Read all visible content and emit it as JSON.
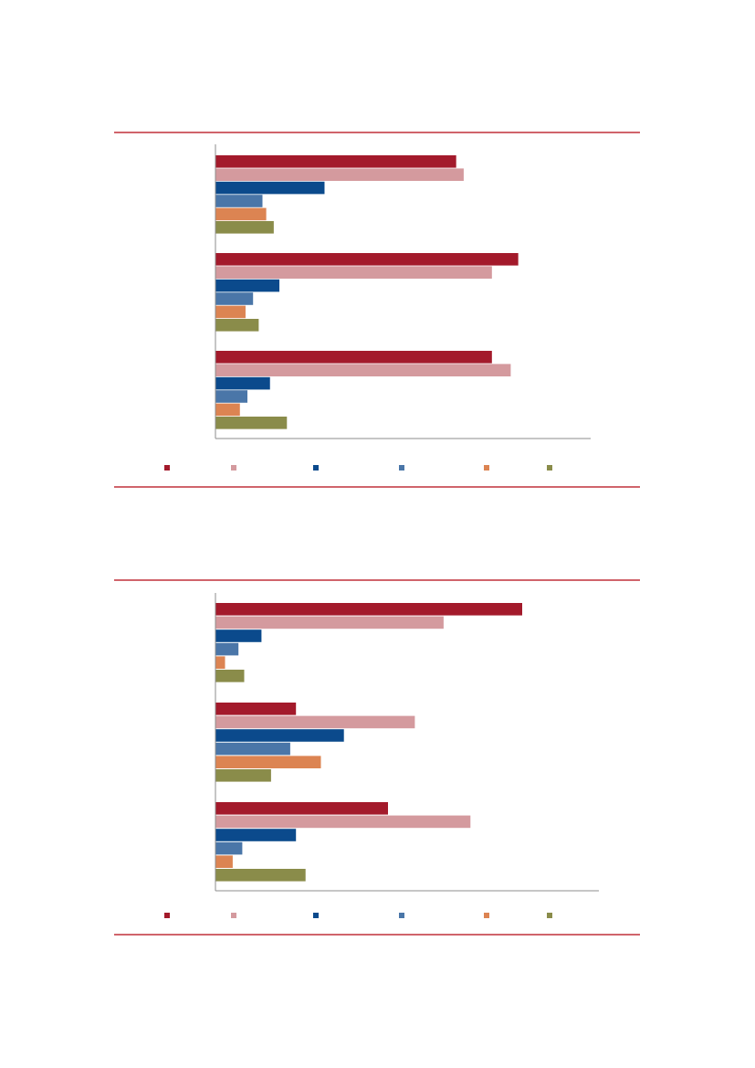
{
  "colors": {
    "rule": "#c0303a",
    "axis": "#8c8c8c"
  },
  "chart_data": [
    {
      "type": "bar",
      "orientation": "horizontal",
      "groups": 3,
      "xlim": [
        0,
        100
      ],
      "grid": false,
      "legend_position": "bottom",
      "series": [
        {
          "color": "#a31a2b",
          "values": [
            64,
            80.5,
            73.5
          ]
        },
        {
          "color": "#d49a9e",
          "values": [
            66,
            73.5,
            78.5
          ]
        },
        {
          "color": "#0b4a8c",
          "values": [
            29,
            17,
            14.5
          ]
        },
        {
          "color": "#4a76a8",
          "values": [
            12.5,
            10,
            8.5
          ]
        },
        {
          "color": "#dc8452",
          "values": [
            13.5,
            8,
            6.5
          ]
        },
        {
          "color": "#8a8c4a",
          "values": [
            15.5,
            11.5,
            19
          ]
        }
      ]
    },
    {
      "type": "bar",
      "orientation": "horizontal",
      "groups": 3,
      "xlim": [
        0,
        100
      ],
      "grid": false,
      "legend_position": "bottom",
      "series": [
        {
          "color": "#a31a2b",
          "values": [
            80,
            21,
            45
          ]
        },
        {
          "color": "#d49a9e",
          "values": [
            59.5,
            52,
            66.5
          ]
        },
        {
          "color": "#0b4a8c",
          "values": [
            12,
            33.5,
            21
          ]
        },
        {
          "color": "#4a76a8",
          "values": [
            6,
            19.5,
            7
          ]
        },
        {
          "color": "#dc8452",
          "values": [
            2.5,
            27.5,
            4.5
          ]
        },
        {
          "color": "#8a8c4a",
          "values": [
            7.5,
            14.5,
            23.5
          ]
        }
      ]
    }
  ]
}
